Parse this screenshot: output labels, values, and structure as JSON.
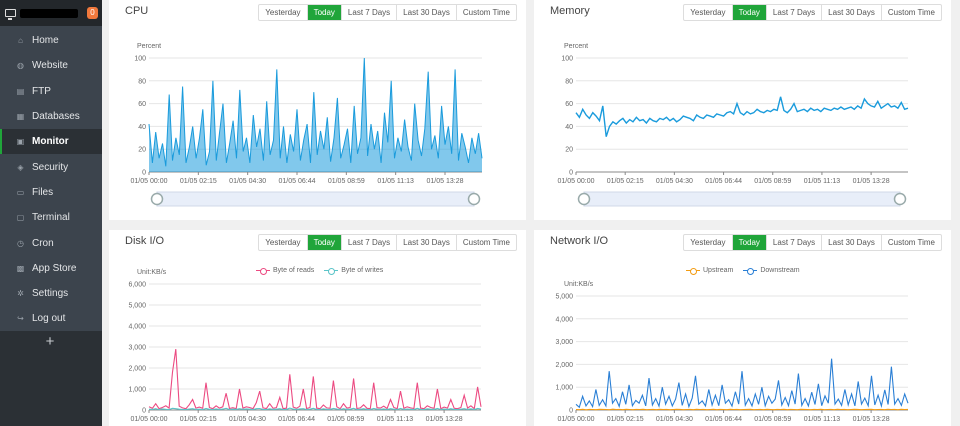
{
  "sidebar": {
    "badge": "0",
    "items": [
      {
        "label": "Home",
        "icon": "home-icon",
        "glyph": "⌂"
      },
      {
        "label": "Website",
        "icon": "globe-icon",
        "glyph": "◍"
      },
      {
        "label": "FTP",
        "icon": "ftp-icon",
        "glyph": "▤"
      },
      {
        "label": "Databases",
        "icon": "database-icon",
        "glyph": "▦"
      },
      {
        "label": "Monitor",
        "icon": "monitor-icon",
        "glyph": "▣",
        "active": true
      },
      {
        "label": "Security",
        "icon": "shield-icon",
        "glyph": "◈"
      },
      {
        "label": "Files",
        "icon": "folder-icon",
        "glyph": "▭"
      },
      {
        "label": "Terminal",
        "icon": "terminal-icon",
        "glyph": "▢"
      },
      {
        "label": "Cron",
        "icon": "clock-icon",
        "glyph": "◷"
      },
      {
        "label": "App Store",
        "icon": "grid-icon",
        "glyph": "▩"
      },
      {
        "label": "Settings",
        "icon": "gear-icon",
        "glyph": "✲"
      },
      {
        "label": "Log out",
        "icon": "logout-icon",
        "glyph": "↪"
      }
    ],
    "add_glyph": "+"
  },
  "range_tabs": [
    "Yesterday",
    "Today",
    "Last 7 Days",
    "Last 30 Days",
    "Custom Time"
  ],
  "active_range": "Today",
  "colors": {
    "accent": "#20a53a",
    "cpu": "#1a9bdc",
    "read": "#ec4b82",
    "write": "#5bc4c8",
    "upstream": "#f39c12",
    "downstream": "#2a7fd5"
  },
  "panels": {
    "cpu": {
      "title": "CPU"
    },
    "memory": {
      "title": "Memory"
    },
    "disk": {
      "title": "Disk I/O"
    },
    "network": {
      "title": "Network I/O"
    }
  },
  "chart_data": [
    {
      "type": "area",
      "title": "CPU",
      "ylabel": "Percent",
      "ylim": [
        0,
        100
      ],
      "yticks": [
        "0",
        "20",
        "40",
        "60",
        "80",
        "100"
      ],
      "xticks": [
        "01/05 00:00",
        "01/05 02:15",
        "01/05 04:30",
        "01/05 06:44",
        "01/05 08:59",
        "01/05 11:13",
        "01/05 13:28"
      ],
      "series": [
        {
          "values": [
            42,
            8,
            35,
            12,
            25,
            5,
            68,
            10,
            30,
            15,
            75,
            8,
            22,
            40,
            12,
            30,
            55,
            6,
            18,
            80,
            10,
            35,
            60,
            8,
            25,
            45,
            12,
            72,
            18,
            30,
            8,
            50,
            22,
            38,
            10,
            62,
            15,
            28,
            90,
            12,
            40,
            8,
            33,
            18,
            55,
            10,
            28,
            42,
            8,
            70,
            15,
            36,
            20,
            48,
            9,
            30,
            65,
            12,
            24,
            38,
            8,
            58,
            16,
            30,
            100,
            14,
            42,
            20,
            36,
            8,
            52,
            26,
            80,
            12,
            30,
            18,
            46,
            22,
            10,
            60,
            28,
            14,
            38,
            88,
            20,
            32,
            12,
            58,
            24,
            40,
            16,
            90,
            10,
            34,
            22,
            8,
            30,
            16,
            34,
            12
          ]
        }
      ]
    },
    {
      "type": "line",
      "title": "Memory",
      "ylabel": "Percent",
      "ylim": [
        0,
        100
      ],
      "yticks": [
        "0",
        "20",
        "40",
        "60",
        "80",
        "100"
      ],
      "xticks": [
        "01/05 00:00",
        "01/05 02:15",
        "01/05 04:30",
        "01/05 06:44",
        "01/05 08:59",
        "01/05 11:13",
        "01/05 13:28"
      ],
      "series": [
        {
          "values": [
            52,
            48,
            55,
            50,
            47,
            52,
            49,
            45,
            58,
            31,
            40,
            44,
            42,
            45,
            47,
            43,
            46,
            44,
            48,
            45,
            46,
            43,
            47,
            45,
            44,
            47,
            46,
            48,
            45,
            47,
            44,
            46,
            49,
            48,
            47,
            45,
            50,
            48,
            47,
            50,
            49,
            48,
            51,
            50,
            49,
            52,
            53,
            51,
            60,
            52,
            50,
            53,
            51,
            52,
            55,
            53,
            52,
            54,
            53,
            55,
            54,
            66,
            54,
            52,
            55,
            60,
            53,
            54,
            55,
            53,
            56,
            54,
            55,
            53,
            56,
            55,
            54,
            56,
            55,
            57,
            55,
            56,
            57,
            55,
            58,
            56,
            64,
            60,
            58,
            57,
            62,
            56,
            58,
            60,
            57,
            58,
            56,
            61,
            55,
            56
          ]
        }
      ]
    },
    {
      "type": "line",
      "title": "Disk I/O",
      "ylabel": "Unit:KB/s",
      "ylim": [
        0,
        6000
      ],
      "yticks": [
        "0",
        "1,000",
        "2,000",
        "3,000",
        "4,000",
        "5,000",
        "6,000"
      ],
      "xticks": [
        "01/05 00:00",
        "01/05 02:15",
        "01/05 04:30",
        "01/05 06:44",
        "01/05 08:59",
        "01/05 11:13",
        "01/05 13:28"
      ],
      "series": [
        {
          "name": "Byte of reads",
          "values": [
            150,
            80,
            300,
            60,
            120,
            200,
            90,
            1800,
            2900,
            180,
            100,
            60,
            250,
            500,
            90,
            140,
            80,
            1300,
            120,
            60,
            200,
            90,
            150,
            800,
            70,
            110,
            60,
            1000,
            90,
            150,
            120,
            60,
            350,
            900,
            100,
            70,
            300,
            80,
            110,
            600,
            60,
            90,
            1700,
            140,
            80,
            180,
            1000,
            70,
            120,
            1600,
            90,
            60,
            240,
            100,
            80,
            1400,
            150,
            60,
            300,
            90,
            120,
            1500,
            70,
            100,
            250,
            80,
            60,
            1300,
            110,
            90,
            180,
            70,
            500,
            120,
            60,
            900,
            80,
            150,
            100,
            70,
            1300,
            90,
            60,
            200,
            120,
            80,
            1000,
            60,
            140,
            90,
            500,
            80,
            60,
            120,
            700,
            90,
            200,
            60,
            1100,
            150
          ]
        },
        {
          "name": "Byte of writes",
          "values": [
            40,
            30,
            60,
            20,
            50,
            35,
            25,
            80,
            60,
            40,
            30,
            25,
            45,
            60,
            30,
            40,
            20,
            70,
            35,
            25,
            50,
            30,
            45,
            80,
            25,
            40,
            30,
            60,
            35,
            50,
            40,
            25,
            60,
            70,
            30,
            25,
            55,
            30,
            40,
            60,
            25,
            30,
            90,
            45,
            30,
            50,
            60,
            25,
            40,
            80,
            30,
            25,
            55,
            35,
            30,
            70,
            45,
            25,
            60,
            30,
            40,
            80,
            25,
            35,
            60,
            30,
            25,
            70,
            40,
            30,
            50,
            25,
            60,
            40,
            25,
            70,
            30,
            45,
            35,
            25,
            80,
            30,
            25,
            55,
            40,
            30,
            70,
            25,
            45,
            30,
            60,
            30,
            25,
            40,
            60,
            30,
            55,
            25,
            70,
            45
          ]
        }
      ]
    },
    {
      "type": "line",
      "title": "Network I/O",
      "ylabel": "Unit:KB/s",
      "ylim": [
        0,
        5000
      ],
      "yticks": [
        "0",
        "1,000",
        "2,000",
        "3,000",
        "4,000",
        "5,000"
      ],
      "xticks": [
        "01/05 00:00",
        "01/05 02:15",
        "01/05 04:30",
        "01/05 06:44",
        "01/05 08:59",
        "01/05 11:13",
        "01/05 13:28"
      ],
      "series": [
        {
          "name": "Upstream",
          "values": [
            20,
            15,
            30,
            10,
            25,
            20,
            15,
            30,
            25,
            20,
            15,
            35,
            20,
            25,
            15,
            30,
            20,
            15,
            25,
            20,
            30,
            15,
            20,
            25,
            15,
            30,
            20,
            25,
            15,
            20,
            30,
            25,
            15,
            20,
            25,
            15,
            30,
            20,
            25,
            15,
            20,
            30,
            15,
            25,
            20,
            15,
            30,
            20,
            25,
            15,
            20,
            25,
            30,
            15,
            20,
            25,
            15,
            30,
            20,
            15,
            25,
            20,
            30,
            15,
            25,
            20,
            15,
            30,
            25,
            20,
            15,
            25,
            20,
            30,
            15,
            20,
            25,
            15,
            30,
            20,
            25,
            15,
            20,
            30,
            25,
            15,
            20,
            25,
            30,
            15,
            20,
            25,
            15,
            30,
            20,
            25,
            15,
            30,
            20,
            25
          ]
        },
        {
          "name": "Downstream",
          "values": [
            250,
            120,
            600,
            180,
            400,
            150,
            900,
            200,
            450,
            180,
            1700,
            300,
            500,
            160,
            800,
            250,
            1100,
            190,
            420,
            300,
            650,
            180,
            1400,
            220,
            500,
            170,
            1000,
            260,
            600,
            180,
            480,
            1200,
            200,
            700,
            150,
            520,
            1500,
            260,
            400,
            180,
            900,
            220,
            650,
            190,
            1100,
            300,
            450,
            170,
            800,
            260,
            1700,
            210,
            500,
            180,
            700,
            250,
            1000,
            190,
            600,
            300,
            480,
            1300,
            220,
            550,
            190,
            850,
            260,
            1600,
            200,
            500,
            180,
            780,
            240,
            1150,
            190,
            620,
            300,
            2250,
            260,
            480,
            200,
            900,
            230,
            700,
            180,
            1250,
            260,
            520,
            190,
            1500,
            220,
            650,
            180,
            880,
            240,
            1900,
            260,
            500,
            200,
            700,
            300
          ]
        }
      ]
    }
  ]
}
